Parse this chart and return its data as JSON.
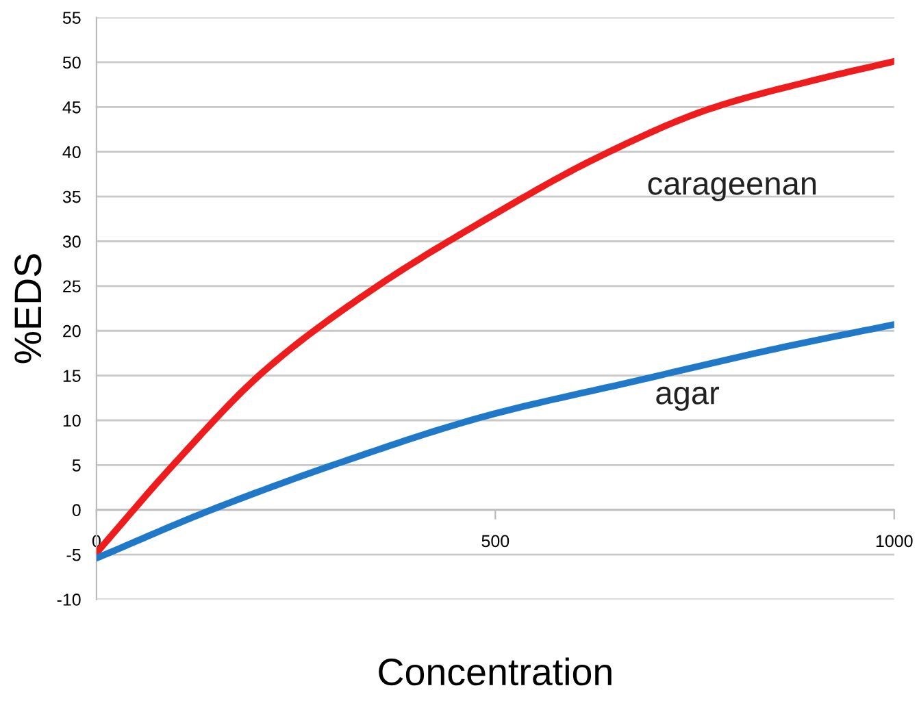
{
  "chart_data": {
    "type": "line",
    "xlabel": "Concentration",
    "ylabel": "%EDS",
    "xlim": [
      0,
      1000
    ],
    "ylim": [
      -10,
      55
    ],
    "xticks": [
      0,
      500,
      1000
    ],
    "yticks": [
      -10,
      -5,
      0,
      5,
      10,
      15,
      20,
      25,
      30,
      35,
      40,
      45,
      50,
      55
    ],
    "grid": "y",
    "legend": false,
    "marker": "none",
    "line_style": "solid",
    "annotations": [
      "carageenan",
      "agar"
    ],
    "series": [
      {
        "color": "#ee1c1c",
        "x": [
          0,
          98,
          210,
          349,
          489,
          629,
          769,
          909,
          1000
        ],
        "values": [
          -4.8,
          5.2,
          15.5,
          24.8,
          32.5,
          39.4,
          44.8,
          48.2,
          50.1
        ]
      },
      {
        "color": "#1f78c8",
        "x": [
          0,
          144,
          303,
          489,
          676,
          862,
          1000
        ],
        "values": [
          -5.4,
          0,
          5.2,
          10.5,
          14.4,
          18.2,
          20.7
        ]
      }
    ]
  }
}
